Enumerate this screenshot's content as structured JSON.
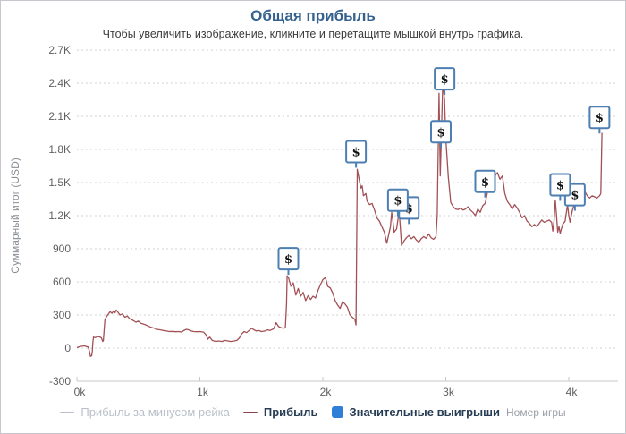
{
  "page": {
    "title": "Общая прибыль",
    "subtitle": "Чтобы увеличить изображение, кликните и перетащите мышкой внутрь графика."
  },
  "colors": {
    "title": "#35618f",
    "profit_line": "#a25055",
    "profit_legend_swatch": "#8f4248",
    "disabled_legend": "#b9bfc9",
    "flag_blue": "#4d7fb2",
    "legend_square_blue": "#2f7ed8",
    "gridline": "#d0d0d0",
    "axis_line": "#c9c9c9"
  },
  "chart_data": {
    "type": "line",
    "title": "Общая прибыль",
    "subtitle": "Чтобы увеличить изображение, кликните и перетащите мышкой внутрь графика.",
    "xlabel": "Номер игры",
    "ylabel": "Суммарный итог (USD)",
    "xlim": [
      0,
      4400
    ],
    "ylim": [
      -300,
      2700
    ],
    "grid": "horizontal-dotted",
    "legend_position": "bottom-center",
    "x_ticks": [
      [
        0,
        "0k"
      ],
      [
        1000,
        "1k"
      ],
      [
        2000,
        "2k"
      ],
      [
        3000,
        "3k"
      ],
      [
        4000,
        "4k"
      ]
    ],
    "y_ticks": [
      [
        -300,
        "-300"
      ],
      [
        0,
        "0"
      ],
      [
        300,
        "300"
      ],
      [
        600,
        "600"
      ],
      [
        900,
        "900"
      ],
      [
        1200,
        "1.2K"
      ],
      [
        1500,
        "1.5K"
      ],
      [
        1800,
        "1.8K"
      ],
      [
        2100,
        "2.1K"
      ],
      [
        2400,
        "2.4K"
      ],
      [
        2700,
        "2.7K"
      ]
    ],
    "legend": {
      "items": [
        {
          "label": "Прибыль за минусом рейка",
          "symbol": "line",
          "color": "#b9bfc9",
          "disabled": true
        },
        {
          "label": "Прибыль",
          "symbol": "line",
          "color": "#8f4248",
          "disabled": false
        },
        {
          "label": "Значительные выигрыши",
          "symbol": "square",
          "color": "#2f7ed8",
          "disabled": false
        }
      ]
    },
    "series": [
      {
        "name": "Прибыль",
        "color": "#a25055",
        "visible": true,
        "points": [
          [
            0,
            5
          ],
          [
            30,
            15
          ],
          [
            60,
            20
          ],
          [
            90,
            10
          ],
          [
            100,
            -20
          ],
          [
            110,
            -75
          ],
          [
            120,
            -70
          ],
          [
            125,
            -30
          ],
          [
            130,
            60
          ],
          [
            135,
            100
          ],
          [
            150,
            95
          ],
          [
            170,
            105
          ],
          [
            190,
            100
          ],
          [
            200,
            90
          ],
          [
            210,
            60
          ],
          [
            215,
            70
          ],
          [
            220,
            150
          ],
          [
            228,
            255
          ],
          [
            235,
            275
          ],
          [
            250,
            300
          ],
          [
            270,
            330
          ],
          [
            285,
            315
          ],
          [
            300,
            340
          ],
          [
            310,
            320
          ],
          [
            320,
            345
          ],
          [
            330,
            330
          ],
          [
            350,
            300
          ],
          [
            370,
            310
          ],
          [
            390,
            280
          ],
          [
            410,
            290
          ],
          [
            430,
            265
          ],
          [
            450,
            255
          ],
          [
            480,
            235
          ],
          [
            500,
            245
          ],
          [
            520,
            225
          ],
          [
            550,
            215
          ],
          [
            580,
            200
          ],
          [
            600,
            190
          ],
          [
            630,
            180
          ],
          [
            650,
            170
          ],
          [
            680,
            165
          ],
          [
            700,
            160
          ],
          [
            730,
            155
          ],
          [
            750,
            150
          ],
          [
            780,
            152
          ],
          [
            800,
            148
          ],
          [
            830,
            150
          ],
          [
            850,
            145
          ],
          [
            870,
            160
          ],
          [
            890,
            170
          ],
          [
            910,
            165
          ],
          [
            930,
            155
          ],
          [
            950,
            150
          ],
          [
            980,
            148
          ],
          [
            1000,
            150
          ],
          [
            1030,
            145
          ],
          [
            1050,
            120
          ],
          [
            1065,
            80
          ],
          [
            1080,
            100
          ],
          [
            1100,
            70
          ],
          [
            1130,
            60
          ],
          [
            1150,
            65
          ],
          [
            1180,
            60
          ],
          [
            1200,
            70
          ],
          [
            1230,
            65
          ],
          [
            1250,
            60
          ],
          [
            1280,
            65
          ],
          [
            1300,
            70
          ],
          [
            1320,
            90
          ],
          [
            1340,
            130
          ],
          [
            1360,
            150
          ],
          [
            1380,
            140
          ],
          [
            1400,
            160
          ],
          [
            1420,
            180
          ],
          [
            1440,
            165
          ],
          [
            1460,
            155
          ],
          [
            1480,
            160
          ],
          [
            1500,
            150
          ],
          [
            1530,
            155
          ],
          [
            1550,
            165
          ],
          [
            1570,
            160
          ],
          [
            1600,
            175
          ],
          [
            1620,
            230
          ],
          [
            1640,
            195
          ],
          [
            1660,
            185
          ],
          [
            1680,
            180
          ],
          [
            1695,
            185
          ],
          [
            1705,
            400
          ],
          [
            1710,
            655
          ],
          [
            1720,
            640
          ],
          [
            1730,
            600
          ],
          [
            1740,
            560
          ],
          [
            1760,
            590
          ],
          [
            1780,
            480
          ],
          [
            1800,
            540
          ],
          [
            1820,
            470
          ],
          [
            1840,
            505
          ],
          [
            1860,
            430
          ],
          [
            1880,
            475
          ],
          [
            1900,
            440
          ],
          [
            1920,
            470
          ],
          [
            1940,
            455
          ],
          [
            1960,
            520
          ],
          [
            1980,
            575
          ],
          [
            2000,
            620
          ],
          [
            2020,
            640
          ],
          [
            2040,
            560
          ],
          [
            2060,
            545
          ],
          [
            2080,
            500
          ],
          [
            2100,
            430
          ],
          [
            2120,
            390
          ],
          [
            2140,
            360
          ],
          [
            2160,
            420
          ],
          [
            2180,
            400
          ],
          [
            2200,
            370
          ],
          [
            2220,
            300
          ],
          [
            2240,
            280
          ],
          [
            2260,
            260
          ],
          [
            2270,
            210
          ],
          [
            2280,
            1620
          ],
          [
            2290,
            1560
          ],
          [
            2300,
            1500
          ],
          [
            2310,
            1450
          ],
          [
            2320,
            1470
          ],
          [
            2330,
            1380
          ],
          [
            2350,
            1400
          ],
          [
            2360,
            1330
          ],
          [
            2380,
            1300
          ],
          [
            2400,
            1310
          ],
          [
            2420,
            1250
          ],
          [
            2440,
            1180
          ],
          [
            2460,
            1150
          ],
          [
            2480,
            1100
          ],
          [
            2500,
            1050
          ],
          [
            2520,
            950
          ],
          [
            2530,
            1000
          ],
          [
            2550,
            1100
          ],
          [
            2560,
            1230
          ],
          [
            2570,
            1150
          ],
          [
            2580,
            1050
          ],
          [
            2600,
            1080
          ],
          [
            2620,
            1240
          ],
          [
            2630,
            1100
          ],
          [
            2640,
            930
          ],
          [
            2660,
            970
          ],
          [
            2680,
            1000
          ],
          [
            2700,
            1020
          ],
          [
            2720,
            990
          ],
          [
            2740,
            1010
          ],
          [
            2760,
            980
          ],
          [
            2780,
            960
          ],
          [
            2800,
            990
          ],
          [
            2820,
            1010
          ],
          [
            2840,
            995
          ],
          [
            2860,
            1035
          ],
          [
            2880,
            1000
          ],
          [
            2900,
            985
          ],
          [
            2920,
            1010
          ],
          [
            2930,
            1200
          ],
          [
            2945,
            2310
          ],
          [
            2955,
            1560
          ],
          [
            2975,
            2400
          ],
          [
            2990,
            2250
          ],
          [
            3000,
            1900
          ],
          [
            3020,
            1550
          ],
          [
            3040,
            1320
          ],
          [
            3060,
            1280
          ],
          [
            3080,
            1260
          ],
          [
            3100,
            1255
          ],
          [
            3120,
            1270
          ],
          [
            3140,
            1250
          ],
          [
            3160,
            1260
          ],
          [
            3180,
            1280
          ],
          [
            3200,
            1250
          ],
          [
            3220,
            1230
          ],
          [
            3240,
            1200
          ],
          [
            3260,
            1260
          ],
          [
            3280,
            1230
          ],
          [
            3300,
            1290
          ],
          [
            3320,
            1310
          ],
          [
            3340,
            1420
          ],
          [
            3360,
            1480
          ],
          [
            3380,
            1540
          ],
          [
            3400,
            1560
          ],
          [
            3420,
            1590
          ],
          [
            3440,
            1530
          ],
          [
            3460,
            1560
          ],
          [
            3480,
            1400
          ],
          [
            3500,
            1330
          ],
          [
            3520,
            1300
          ],
          [
            3540,
            1260
          ],
          [
            3560,
            1300
          ],
          [
            3580,
            1270
          ],
          [
            3600,
            1230
          ],
          [
            3620,
            1180
          ],
          [
            3640,
            1200
          ],
          [
            3660,
            1150
          ],
          [
            3680,
            1130
          ],
          [
            3700,
            1100
          ],
          [
            3720,
            1120
          ],
          [
            3740,
            1100
          ],
          [
            3760,
            1130
          ],
          [
            3780,
            1160
          ],
          [
            3800,
            1140
          ],
          [
            3820,
            1150
          ],
          [
            3840,
            1160
          ],
          [
            3860,
            1140
          ],
          [
            3870,
            1060
          ],
          [
            3880,
            1150
          ],
          [
            3890,
            1340
          ],
          [
            3900,
            1200
          ],
          [
            3910,
            1050
          ],
          [
            3920,
            1100
          ],
          [
            3930,
            1040
          ],
          [
            3950,
            1120
          ],
          [
            3970,
            1150
          ],
          [
            3990,
            1300
          ],
          [
            4000,
            1200
          ],
          [
            4010,
            1140
          ],
          [
            4030,
            1250
          ],
          [
            4050,
            1320
          ],
          [
            4070,
            1350
          ],
          [
            4090,
            1380
          ],
          [
            4110,
            1340
          ],
          [
            4130,
            1420
          ],
          [
            4150,
            1380
          ],
          [
            4170,
            1360
          ],
          [
            4190,
            1380
          ],
          [
            4210,
            1370
          ],
          [
            4230,
            1360
          ],
          [
            4250,
            1380
          ],
          [
            4260,
            1400
          ],
          [
            4270,
            1950
          ]
        ]
      },
      {
        "name": "Прибыль за минусом рейка",
        "color": "#b9bfc9",
        "visible": false,
        "points": []
      }
    ],
    "flags": {
      "name": "Значительные выигрыши",
      "glyph": "$",
      "items": [
        {
          "x": 1720,
          "y": 810
        },
        {
          "x": 2270,
          "y": 1780
        },
        {
          "x": 2610,
          "y": 1340
        },
        {
          "x": 2700,
          "y": 1270
        },
        {
          "x": 2990,
          "y": 2440
        },
        {
          "x": 2960,
          "y": 1960
        },
        {
          "x": 3320,
          "y": 1510
        },
        {
          "x": 3930,
          "y": 1480
        },
        {
          "x": 4050,
          "y": 1390
        },
        {
          "x": 4250,
          "y": 2090
        }
      ]
    }
  }
}
